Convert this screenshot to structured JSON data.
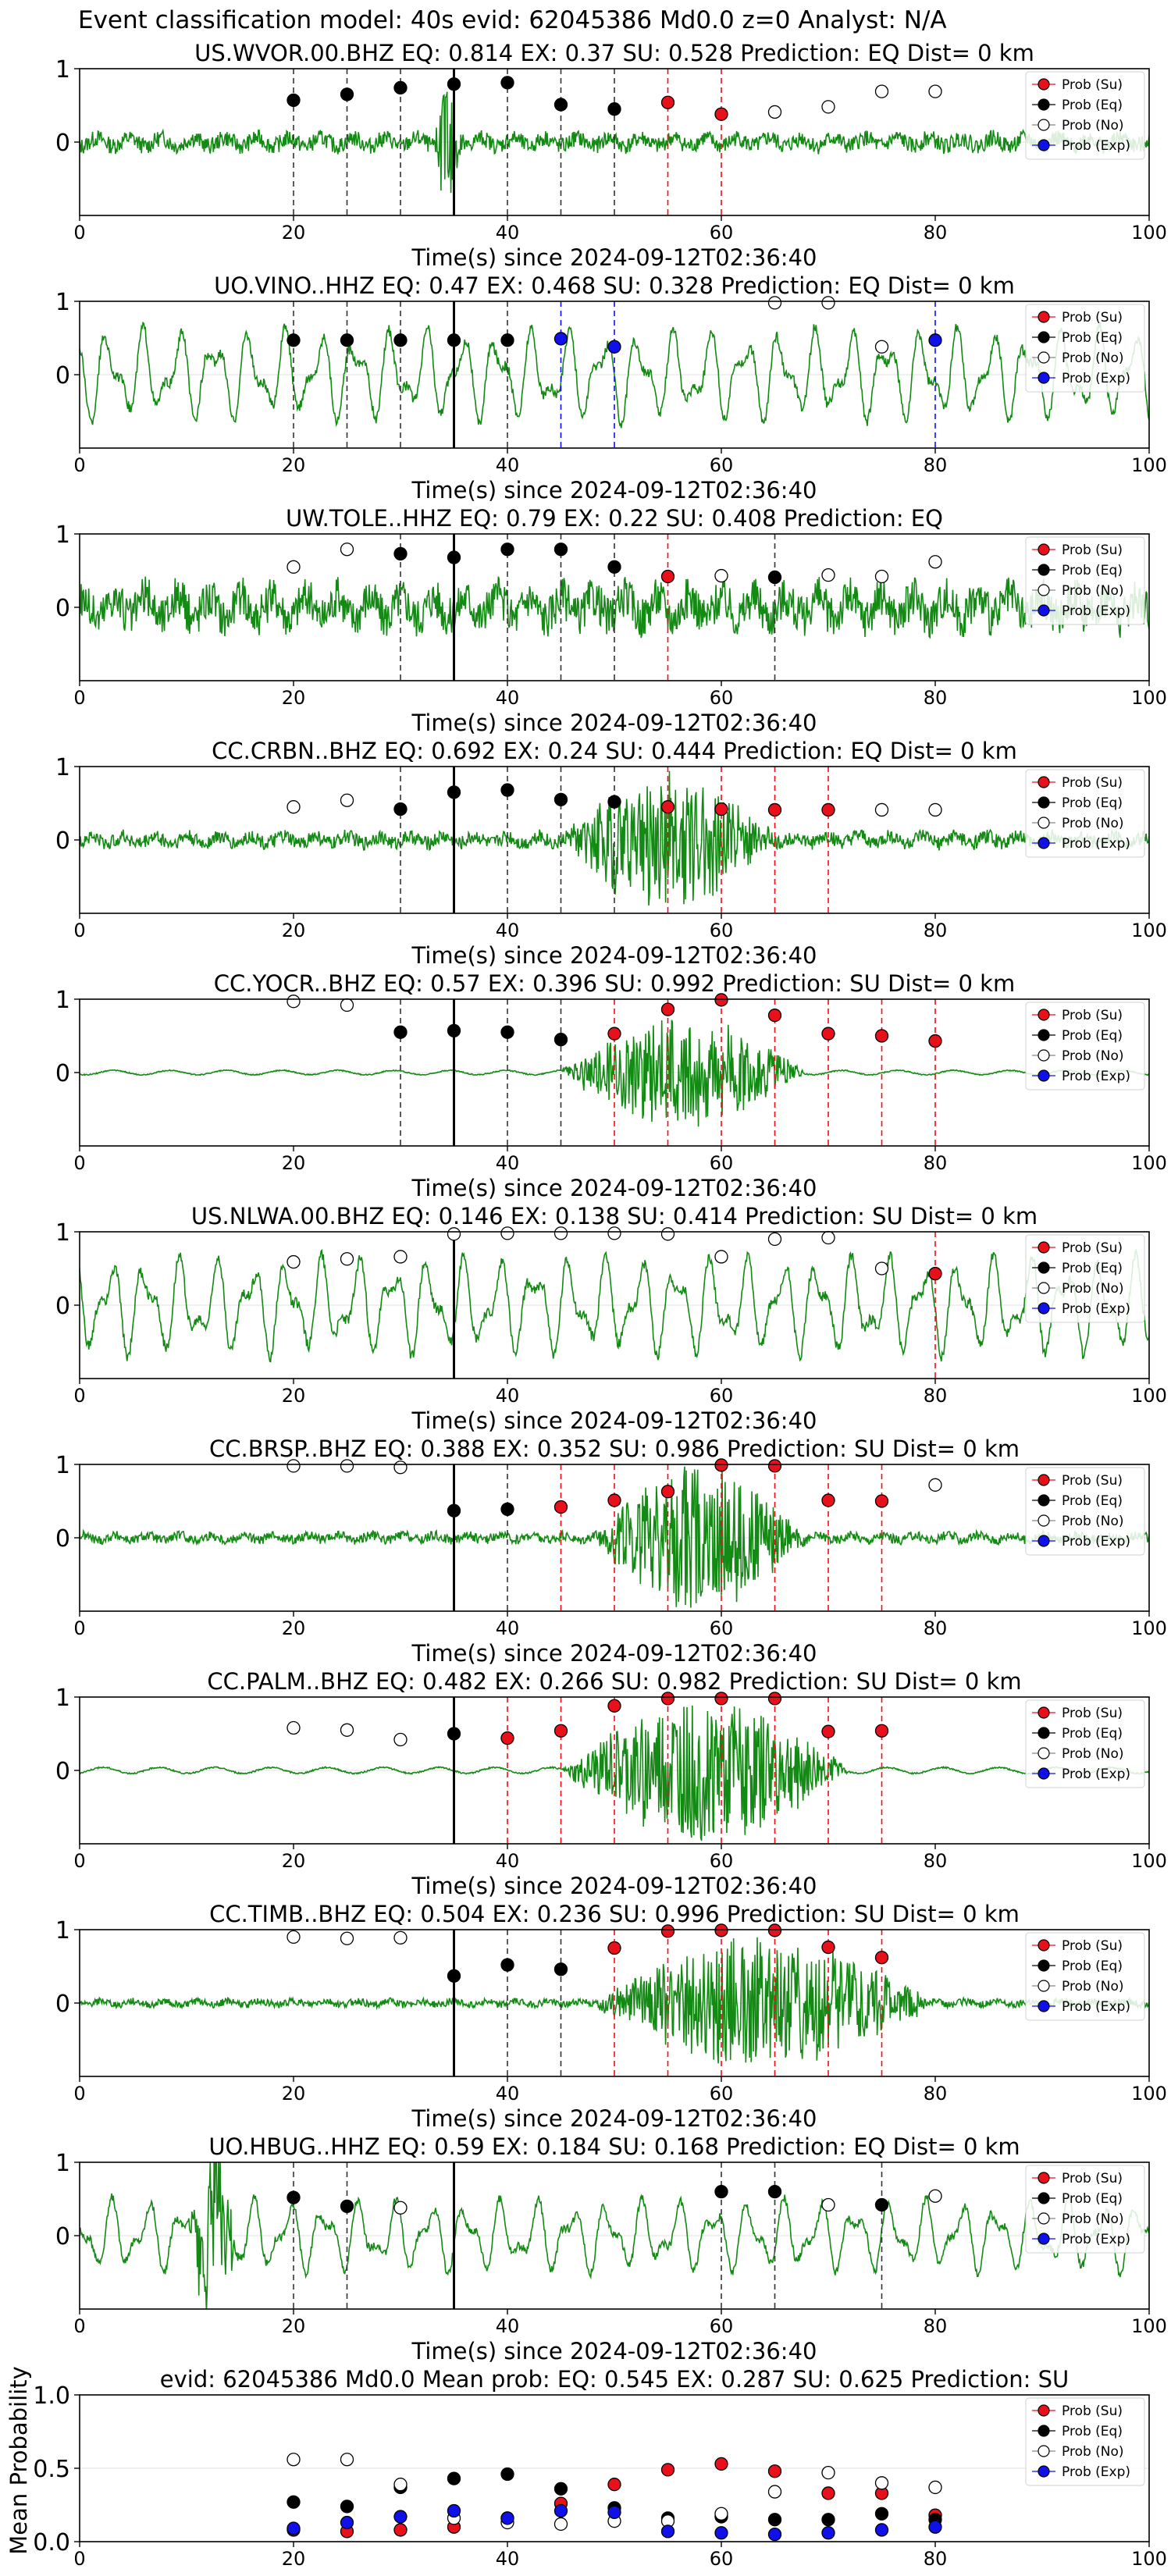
{
  "figure": {
    "title": "Event classification model: 40s evid: 62045386 Md0.0 z=0 Analyst: N/A"
  },
  "legend": {
    "entries": [
      {
        "label": "Prob (Su)",
        "color": "#e8101a"
      },
      {
        "label": "Prob (Eq)",
        "color": "#000000"
      },
      {
        "label": "Prob (No)",
        "color": "#ffffff"
      },
      {
        "label": "Prob (Exp)",
        "color": "#1010e8"
      }
    ]
  },
  "colors": {
    "waveform": "#138a13",
    "su_line": "#e8101a",
    "eq_line": "#333333",
    "exp_line": "#1010e8",
    "arrival_line": "#000000"
  },
  "chart_data": [
    {
      "type": "scatter",
      "station": "US.WVOR.00.BHZ",
      "title": "US.WVOR.00.BHZ   EQ: 0.814  EX: 0.37  SU: 0.528   Prediction: EQ    Dist= 0 km",
      "xlabel": "Time(s) since 2024-09-12T02:36:40",
      "xlim": [
        0,
        100
      ],
      "ylim": [
        -1,
        1
      ],
      "xticks": [
        0,
        20,
        40,
        60,
        80,
        100
      ],
      "yticks": [
        0,
        1
      ],
      "arrival": 35,
      "waveform": {
        "kind": "spiky",
        "amp": 0.14,
        "burst": [
          33,
          36,
          0.95
        ]
      },
      "points": [
        {
          "x": 20,
          "y": 0.57,
          "cls": "eq"
        },
        {
          "x": 25,
          "y": 0.65,
          "cls": "eq"
        },
        {
          "x": 30,
          "y": 0.74,
          "cls": "eq"
        },
        {
          "x": 35,
          "y": 0.79,
          "cls": "eq"
        },
        {
          "x": 40,
          "y": 0.81,
          "cls": "eq"
        },
        {
          "x": 45,
          "y": 0.51,
          "cls": "eq"
        },
        {
          "x": 50,
          "y": 0.45,
          "cls": "eq"
        },
        {
          "x": 55,
          "y": 0.54,
          "cls": "su"
        },
        {
          "x": 60,
          "y": 0.38,
          "cls": "su"
        },
        {
          "x": 65,
          "y": 0.41,
          "cls": "no"
        },
        {
          "x": 70,
          "y": 0.48,
          "cls": "no"
        },
        {
          "x": 75,
          "y": 0.69,
          "cls": "no"
        },
        {
          "x": 80,
          "y": 0.69,
          "cls": "no"
        }
      ]
    },
    {
      "type": "scatter",
      "station": "UO.VINO..HHZ",
      "title": "UO.VINO..HHZ   EQ: 0.47  EX: 0.468  SU: 0.328   Prediction: EQ    Dist= 0 km",
      "xlabel": "Time(s) since 2024-09-12T02:36:40",
      "xlim": [
        0,
        100
      ],
      "ylim": [
        -1,
        1
      ],
      "xticks": [
        0,
        20,
        40,
        60,
        80,
        100
      ],
      "yticks": [
        0,
        1
      ],
      "arrival": 35,
      "waveform": {
        "kind": "smooth",
        "amp": 0.7
      },
      "points": [
        {
          "x": 20,
          "y": 0.47,
          "cls": "eq"
        },
        {
          "x": 25,
          "y": 0.47,
          "cls": "eq"
        },
        {
          "x": 30,
          "y": 0.47,
          "cls": "eq"
        },
        {
          "x": 35,
          "y": 0.47,
          "cls": "eq"
        },
        {
          "x": 40,
          "y": 0.47,
          "cls": "eq"
        },
        {
          "x": 45,
          "y": 0.49,
          "cls": "exp"
        },
        {
          "x": 50,
          "y": 0.38,
          "cls": "exp"
        },
        {
          "x": 65,
          "y": 0.98,
          "cls": "no"
        },
        {
          "x": 70,
          "y": 0.98,
          "cls": "no"
        },
        {
          "x": 75,
          "y": 0.38,
          "cls": "no"
        },
        {
          "x": 80,
          "y": 0.47,
          "cls": "exp"
        }
      ]
    },
    {
      "type": "scatter",
      "station": "UW.TOLE..HHZ",
      "title": "UW.TOLE..HHZ   EQ: 0.79  EX: 0.22  SU: 0.408   Prediction: EQ",
      "xlabel": "Time(s) since 2024-09-12T02:36:40",
      "xlim": [
        0,
        100
      ],
      "ylim": [
        -1,
        1
      ],
      "xticks": [
        0,
        20,
        40,
        60,
        80,
        100
      ],
      "yticks": [
        0,
        1
      ],
      "arrival": 35,
      "waveform": {
        "kind": "noisy",
        "amp": 0.35
      },
      "points": [
        {
          "x": 20,
          "y": 0.55,
          "cls": "no"
        },
        {
          "x": 25,
          "y": 0.79,
          "cls": "no"
        },
        {
          "x": 30,
          "y": 0.73,
          "cls": "eq"
        },
        {
          "x": 35,
          "y": 0.68,
          "cls": "eq"
        },
        {
          "x": 40,
          "y": 0.79,
          "cls": "eq"
        },
        {
          "x": 45,
          "y": 0.79,
          "cls": "eq"
        },
        {
          "x": 50,
          "y": 0.55,
          "cls": "eq"
        },
        {
          "x": 55,
          "y": 0.42,
          "cls": "su"
        },
        {
          "x": 60,
          "y": 0.43,
          "cls": "no"
        },
        {
          "x": 65,
          "y": 0.41,
          "cls": "eq"
        },
        {
          "x": 70,
          "y": 0.44,
          "cls": "no"
        },
        {
          "x": 75,
          "y": 0.42,
          "cls": "no"
        },
        {
          "x": 80,
          "y": 0.62,
          "cls": "no"
        }
      ]
    },
    {
      "type": "scatter",
      "station": "CC.CRBN..BHZ",
      "title": "CC.CRBN..BHZ   EQ: 0.692  EX: 0.24  SU: 0.444   Prediction: EQ    Dist= 0 km",
      "xlabel": "Time(s) since 2024-09-12T02:36:40",
      "xlim": [
        0,
        100
      ],
      "ylim": [
        -1,
        1
      ],
      "xticks": [
        0,
        20,
        40,
        60,
        80,
        100
      ],
      "yticks": [
        0,
        1
      ],
      "arrival": 35,
      "waveform": {
        "kind": "noisy",
        "amp": 0.12,
        "burst": [
          45,
          65,
          0.9
        ]
      },
      "points": [
        {
          "x": 20,
          "y": 0.45,
          "cls": "no"
        },
        {
          "x": 25,
          "y": 0.54,
          "cls": "no"
        },
        {
          "x": 30,
          "y": 0.42,
          "cls": "eq"
        },
        {
          "x": 35,
          "y": 0.65,
          "cls": "eq"
        },
        {
          "x": 40,
          "y": 0.68,
          "cls": "eq"
        },
        {
          "x": 45,
          "y": 0.55,
          "cls": "eq"
        },
        {
          "x": 50,
          "y": 0.52,
          "cls": "eq"
        },
        {
          "x": 55,
          "y": 0.45,
          "cls": "su"
        },
        {
          "x": 60,
          "y": 0.42,
          "cls": "su"
        },
        {
          "x": 65,
          "y": 0.41,
          "cls": "su"
        },
        {
          "x": 70,
          "y": 0.41,
          "cls": "su"
        },
        {
          "x": 75,
          "y": 0.41,
          "cls": "no"
        },
        {
          "x": 80,
          "y": 0.41,
          "cls": "no"
        }
      ]
    },
    {
      "type": "scatter",
      "station": "CC.YOCR..BHZ",
      "title": "CC.YOCR..BHZ   EQ: 0.57  EX: 0.396  SU: 0.992   Prediction: SU    Dist= 0 km",
      "xlabel": "Time(s) since 2024-09-12T02:36:40",
      "xlim": [
        0,
        100
      ],
      "ylim": [
        -1,
        1
      ],
      "xticks": [
        0,
        20,
        40,
        60,
        80,
        100
      ],
      "yticks": [
        0,
        1
      ],
      "arrival": 35,
      "waveform": {
        "kind": "quiet",
        "amp": 0.03,
        "burst": [
          45,
          68,
          0.75
        ]
      },
      "points": [
        {
          "x": 20,
          "y": 0.97,
          "cls": "no"
        },
        {
          "x": 25,
          "y": 0.92,
          "cls": "no"
        },
        {
          "x": 30,
          "y": 0.55,
          "cls": "eq"
        },
        {
          "x": 35,
          "y": 0.57,
          "cls": "eq"
        },
        {
          "x": 40,
          "y": 0.55,
          "cls": "eq"
        },
        {
          "x": 45,
          "y": 0.45,
          "cls": "eq"
        },
        {
          "x": 50,
          "y": 0.53,
          "cls": "su"
        },
        {
          "x": 55,
          "y": 0.86,
          "cls": "su"
        },
        {
          "x": 60,
          "y": 0.99,
          "cls": "su"
        },
        {
          "x": 65,
          "y": 0.78,
          "cls": "su"
        },
        {
          "x": 70,
          "y": 0.53,
          "cls": "su"
        },
        {
          "x": 75,
          "y": 0.5,
          "cls": "su"
        },
        {
          "x": 80,
          "y": 0.43,
          "cls": "su"
        }
      ]
    },
    {
      "type": "scatter",
      "station": "US.NLWA.00.BHZ",
      "title": "US.NLWA.00.BHZ   EQ: 0.146  EX: 0.138  SU: 0.414   Prediction: SU    Dist= 0 km",
      "xlabel": "Time(s) since 2024-09-12T02:36:40",
      "xlim": [
        0,
        100
      ],
      "ylim": [
        -1,
        1
      ],
      "xticks": [
        0,
        20,
        40,
        60,
        80,
        100
      ],
      "yticks": [
        0,
        1
      ],
      "arrival": 35,
      "waveform": {
        "kind": "smooth",
        "amp": 0.75
      },
      "points": [
        {
          "x": 20,
          "y": 0.59,
          "cls": "no"
        },
        {
          "x": 25,
          "y": 0.63,
          "cls": "no"
        },
        {
          "x": 30,
          "y": 0.66,
          "cls": "no"
        },
        {
          "x": 35,
          "y": 0.97,
          "cls": "no"
        },
        {
          "x": 40,
          "y": 0.98,
          "cls": "no"
        },
        {
          "x": 45,
          "y": 0.98,
          "cls": "no"
        },
        {
          "x": 50,
          "y": 0.98,
          "cls": "no"
        },
        {
          "x": 55,
          "y": 0.97,
          "cls": "no"
        },
        {
          "x": 60,
          "y": 0.66,
          "cls": "no"
        },
        {
          "x": 65,
          "y": 0.9,
          "cls": "no"
        },
        {
          "x": 70,
          "y": 0.92,
          "cls": "no"
        },
        {
          "x": 75,
          "y": 0.5,
          "cls": "no"
        },
        {
          "x": 80,
          "y": 0.43,
          "cls": "su"
        }
      ]
    },
    {
      "type": "scatter",
      "station": "CC.BRSP..BHZ",
      "title": "CC.BRSP..BHZ   EQ: 0.388  EX: 0.352  SU: 0.986   Prediction: SU    Dist= 0 km",
      "xlabel": "Time(s) since 2024-09-12T02:36:40",
      "xlim": [
        0,
        100
      ],
      "ylim": [
        -1,
        1
      ],
      "xticks": [
        0,
        20,
        40,
        60,
        80,
        100
      ],
      "yticks": [
        0,
        1
      ],
      "arrival": 35,
      "waveform": {
        "kind": "noisy",
        "amp": 0.08,
        "burst": [
          48,
          68,
          0.95
        ]
      },
      "points": [
        {
          "x": 20,
          "y": 0.98,
          "cls": "no"
        },
        {
          "x": 25,
          "y": 0.98,
          "cls": "no"
        },
        {
          "x": 30,
          "y": 0.96,
          "cls": "no"
        },
        {
          "x": 35,
          "y": 0.37,
          "cls": "eq"
        },
        {
          "x": 40,
          "y": 0.39,
          "cls": "eq"
        },
        {
          "x": 45,
          "y": 0.42,
          "cls": "su"
        },
        {
          "x": 50,
          "y": 0.51,
          "cls": "su"
        },
        {
          "x": 55,
          "y": 0.63,
          "cls": "su"
        },
        {
          "x": 60,
          "y": 0.99,
          "cls": "su"
        },
        {
          "x": 65,
          "y": 0.98,
          "cls": "su"
        },
        {
          "x": 70,
          "y": 0.51,
          "cls": "su"
        },
        {
          "x": 75,
          "y": 0.5,
          "cls": "su"
        },
        {
          "x": 80,
          "y": 0.72,
          "cls": "no"
        }
      ]
    },
    {
      "type": "scatter",
      "station": "CC.PALM..BHZ",
      "title": "CC.PALM..BHZ   EQ: 0.482  EX: 0.266  SU: 0.982   Prediction: SU    Dist= 0 km",
      "xlabel": "Time(s) since 2024-09-12T02:36:40",
      "xlim": [
        0,
        100
      ],
      "ylim": [
        -1,
        1
      ],
      "xticks": [
        0,
        20,
        40,
        60,
        80,
        100
      ],
      "yticks": [
        0,
        1
      ],
      "arrival": 35,
      "waveform": {
        "kind": "quiet",
        "amp": 0.04,
        "burst": [
          45,
          72,
          0.95
        ]
      },
      "points": [
        {
          "x": 20,
          "y": 0.58,
          "cls": "no"
        },
        {
          "x": 25,
          "y": 0.55,
          "cls": "no"
        },
        {
          "x": 30,
          "y": 0.42,
          "cls": "no"
        },
        {
          "x": 35,
          "y": 0.5,
          "cls": "eq"
        },
        {
          "x": 40,
          "y": 0.44,
          "cls": "su"
        },
        {
          "x": 45,
          "y": 0.54,
          "cls": "su"
        },
        {
          "x": 50,
          "y": 0.88,
          "cls": "su"
        },
        {
          "x": 55,
          "y": 0.98,
          "cls": "su"
        },
        {
          "x": 60,
          "y": 0.98,
          "cls": "su"
        },
        {
          "x": 65,
          "y": 0.98,
          "cls": "su"
        },
        {
          "x": 70,
          "y": 0.53,
          "cls": "su"
        },
        {
          "x": 75,
          "y": 0.54,
          "cls": "su"
        }
      ]
    },
    {
      "type": "scatter",
      "station": "CC.TIMB..BHZ",
      "title": "CC.TIMB..BHZ   EQ: 0.504  EX: 0.236  SU: 0.996   Prediction: SU    Dist= 0 km",
      "xlabel": "Time(s) since 2024-09-12T02:36:40",
      "xlim": [
        0,
        100
      ],
      "ylim": [
        -1,
        1
      ],
      "xticks": [
        0,
        20,
        40,
        60,
        80,
        100
      ],
      "yticks": [
        0,
        1
      ],
      "arrival": 35,
      "waveform": {
        "kind": "noisy",
        "amp": 0.06,
        "burst": [
          48,
          80,
          0.9
        ]
      },
      "points": [
        {
          "x": 20,
          "y": 0.9,
          "cls": "no"
        },
        {
          "x": 25,
          "y": 0.88,
          "cls": "no"
        },
        {
          "x": 30,
          "y": 0.89,
          "cls": "no"
        },
        {
          "x": 35,
          "y": 0.37,
          "cls": "eq"
        },
        {
          "x": 40,
          "y": 0.52,
          "cls": "eq"
        },
        {
          "x": 45,
          "y": 0.46,
          "cls": "eq"
        },
        {
          "x": 50,
          "y": 0.75,
          "cls": "su"
        },
        {
          "x": 55,
          "y": 0.98,
          "cls": "su"
        },
        {
          "x": 60,
          "y": 0.99,
          "cls": "su"
        },
        {
          "x": 65,
          "y": 0.99,
          "cls": "su"
        },
        {
          "x": 70,
          "y": 0.76,
          "cls": "su"
        },
        {
          "x": 75,
          "y": 0.62,
          "cls": "su"
        }
      ]
    },
    {
      "type": "scatter",
      "station": "UO.HBUG..HHZ",
      "title": "UO.HBUG..HHZ   EQ: 0.59  EX: 0.184  SU: 0.168   Prediction: EQ    Dist= 0 km",
      "xlabel": "Time(s) since 2024-09-12T02:36:40",
      "xlim": [
        0,
        100
      ],
      "ylim": [
        -1,
        1
      ],
      "xticks": [
        0,
        20,
        40,
        60,
        80,
        100
      ],
      "yticks": [
        0,
        1
      ],
      "arrival": 35,
      "waveform": {
        "kind": "smooth",
        "amp": 0.55,
        "burst": [
          10,
          15,
          0.9
        ]
      },
      "points": [
        {
          "x": 20,
          "y": 0.52,
          "cls": "eq"
        },
        {
          "x": 25,
          "y": 0.4,
          "cls": "eq"
        },
        {
          "x": 30,
          "y": 0.38,
          "cls": "no"
        },
        {
          "x": 60,
          "y": 0.6,
          "cls": "eq"
        },
        {
          "x": 65,
          "y": 0.6,
          "cls": "eq"
        },
        {
          "x": 70,
          "y": 0.42,
          "cls": "no"
        },
        {
          "x": 75,
          "y": 0.42,
          "cls": "eq"
        },
        {
          "x": 80,
          "y": 0.54,
          "cls": "no"
        }
      ]
    },
    {
      "type": "scatter",
      "station": "mean",
      "title": "evid: 62045386  Md0.0   Mean prob:   EQ: 0.545  EX: 0.287  SU: 0.625   Prediction: SU",
      "xlabel": "",
      "ylabel": "Mean Probability",
      "xlim": [
        0,
        100
      ],
      "ylim": [
        0,
        1
      ],
      "xticks": [
        0,
        20,
        40,
        60,
        80,
        100
      ],
      "yticks": [
        0.0,
        0.5,
        1.0
      ],
      "series": [
        {
          "name": "Prob (Su)",
          "cls": "su",
          "x": [
            20,
            25,
            30,
            35,
            40,
            45,
            50,
            55,
            60,
            65,
            70,
            75,
            80
          ],
          "y": [
            0.08,
            0.07,
            0.08,
            0.1,
            0.16,
            0.26,
            0.39,
            0.49,
            0.53,
            0.48,
            0.33,
            0.33,
            0.18
          ]
        },
        {
          "name": "Prob (Eq)",
          "cls": "eq",
          "x": [
            20,
            25,
            30,
            35,
            40,
            45,
            50,
            55,
            60,
            65,
            70,
            75,
            80
          ],
          "y": [
            0.27,
            0.24,
            0.37,
            0.43,
            0.46,
            0.36,
            0.23,
            0.16,
            0.17,
            0.15,
            0.15,
            0.19,
            0.15
          ]
        },
        {
          "name": "Prob (No)",
          "cls": "no",
          "x": [
            20,
            25,
            30,
            35,
            40,
            45,
            50,
            55,
            60,
            65,
            70,
            75,
            80
          ],
          "y": [
            0.56,
            0.56,
            0.39,
            0.16,
            0.13,
            0.12,
            0.14,
            0.14,
            0.19,
            0.34,
            0.47,
            0.4,
            0.37
          ]
        },
        {
          "name": "Prob (Exp)",
          "cls": "exp",
          "x": [
            20,
            25,
            30,
            35,
            40,
            45,
            50,
            55,
            60,
            65,
            70,
            75,
            80
          ],
          "y": [
            0.09,
            0.13,
            0.17,
            0.21,
            0.16,
            0.21,
            0.2,
            0.07,
            0.06,
            0.05,
            0.06,
            0.08,
            0.1
          ]
        }
      ]
    }
  ]
}
